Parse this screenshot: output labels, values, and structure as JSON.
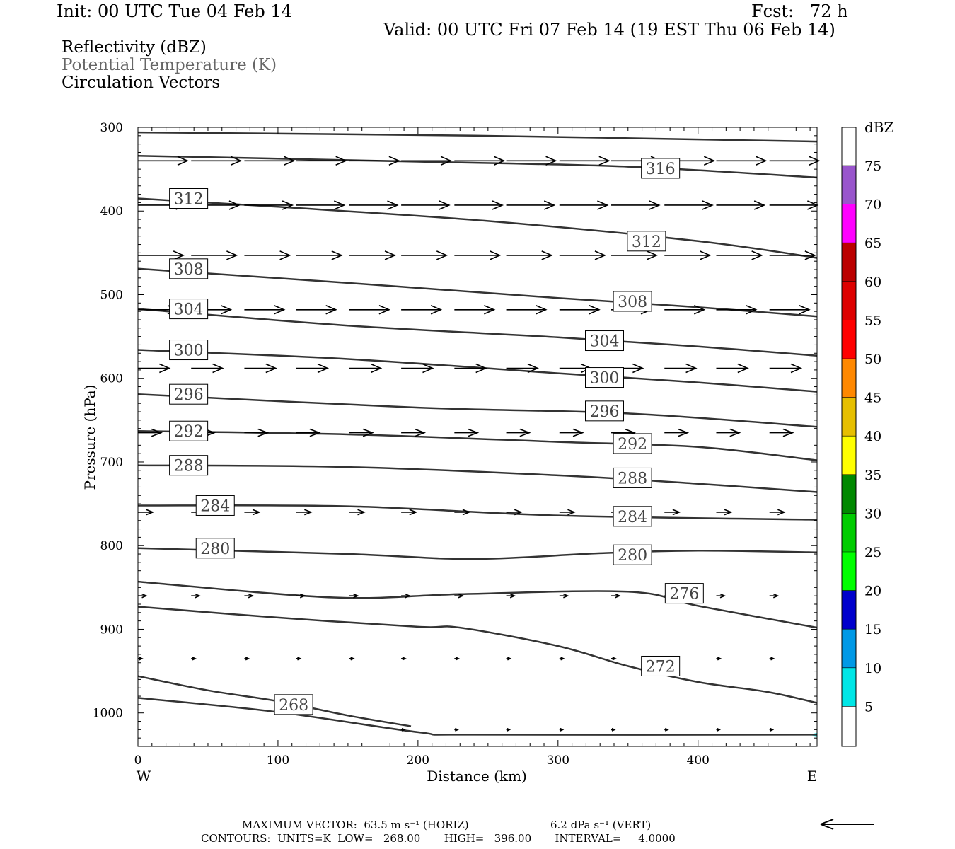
{
  "header": {
    "init": "Init: 00 UTC Tue 04 Feb 14",
    "fcst": "Fcst:   72 h",
    "valid": "Valid: 00 UTC Fri 07 Feb 14 (19 EST Thu 06 Feb 14)",
    "legend": [
      "Reflectivity (dBZ)",
      "Potential Temperature (K)",
      "Circulation Vectors"
    ]
  },
  "footer": {
    "max_vector_horiz": "MAXIMUM VECTOR:  63.5 m s⁻¹ (HORIZ)",
    "max_vector_vert": "6.2 dPa s⁻¹ (VERT)",
    "contours": "CONTOURS:  UNITS=K  LOW=   268.00       HIGH=   396.00       INTERVAL=     4.0000"
  },
  "chart_data": {
    "type": "cross-section contour",
    "xlabel": "Distance (km)",
    "ylabel": "Pressure (hPa)",
    "x_end_labels": [
      "W",
      "E"
    ],
    "xlim": [
      0,
      485
    ],
    "ylim": [
      1040,
      300
    ],
    "x_ticks": [
      0,
      100,
      200,
      300,
      400
    ],
    "y_ticks": [
      300,
      400,
      500,
      600,
      700,
      800,
      900,
      1000
    ],
    "colorbar": {
      "unit": "dBZ",
      "levels": [
        5,
        10,
        15,
        20,
        25,
        30,
        35,
        40,
        45,
        50,
        55,
        60,
        65,
        70,
        75
      ],
      "colors": [
        "#00e6e6",
        "#0099e6",
        "#0000cc",
        "#00ff00",
        "#00cc00",
        "#008800",
        "#ffff00",
        "#e6bf00",
        "#ff8800",
        "#ff0000",
        "#dd0000",
        "#bb0000",
        "#ff00ff",
        "#9955cc"
      ]
    },
    "contour_color": "#333333",
    "theta_contours": [
      {
        "label": "",
        "points": [
          [
            0,
            306
          ],
          [
            240,
            310
          ],
          [
            485,
            317
          ]
        ]
      },
      {
        "label": "316",
        "label_at": [
          355,
          349
        ],
        "points": [
          [
            0,
            334
          ],
          [
            200,
            341
          ],
          [
            350,
            347
          ],
          [
            485,
            360
          ]
        ]
      },
      {
        "label": "312",
        "label_at": [
          18,
          385
        ],
        "points": [
          [
            0,
            385
          ],
          [
            100,
            395
          ],
          [
            250,
            412
          ],
          [
            400,
            436
          ],
          [
            485,
            456
          ]
        ]
      },
      {
        "label": "312",
        "label_at": [
          345,
          436
        ],
        "points": []
      },
      {
        "label": "308",
        "label_at": [
          18,
          469
        ],
        "points": [
          [
            0,
            469
          ],
          [
            150,
            486
          ],
          [
            300,
            504
          ],
          [
            400,
            515
          ],
          [
            485,
            526
          ]
        ]
      },
      {
        "label": "308",
        "label_at": [
          335,
          508
        ],
        "points": []
      },
      {
        "label": "304",
        "label_at": [
          18,
          517
        ],
        "points": [
          [
            0,
            517
          ],
          [
            150,
            537
          ],
          [
            300,
            551
          ],
          [
            400,
            562
          ],
          [
            485,
            573
          ]
        ]
      },
      {
        "label": "304",
        "label_at": [
          315,
          555
        ],
        "points": []
      },
      {
        "label": "300",
        "label_at": [
          18,
          566
        ],
        "points": [
          [
            0,
            566
          ],
          [
            150,
            577
          ],
          [
            300,
            594
          ],
          [
            400,
            605
          ],
          [
            485,
            616
          ]
        ]
      },
      {
        "label": "300",
        "label_at": [
          315,
          599
        ],
        "points": []
      },
      {
        "label": "296",
        "label_at": [
          18,
          619
        ],
        "points": [
          [
            0,
            619
          ],
          [
            200,
            635
          ],
          [
            350,
            642
          ],
          [
            485,
            658
          ]
        ]
      },
      {
        "label": "296",
        "label_at": [
          315,
          639
        ],
        "points": []
      },
      {
        "label": "292",
        "label_at": [
          18,
          663
        ],
        "points": [
          [
            0,
            663
          ],
          [
            150,
            667
          ],
          [
            300,
            676
          ],
          [
            400,
            682
          ],
          [
            485,
            698
          ]
        ]
      },
      {
        "label": "292",
        "label_at": [
          335,
          678
        ],
        "points": []
      },
      {
        "label": "288",
        "label_at": [
          18,
          704
        ],
        "points": [
          [
            0,
            704
          ],
          [
            150,
            706
          ],
          [
            300,
            716
          ],
          [
            400,
            726
          ],
          [
            485,
            736
          ]
        ]
      },
      {
        "label": "288",
        "label_at": [
          335,
          719
        ],
        "points": []
      },
      {
        "label": "284",
        "label_at": [
          37,
          752
        ],
        "points": [
          [
            0,
            752
          ],
          [
            150,
            753
          ],
          [
            300,
            764
          ],
          [
            485,
            769
          ]
        ]
      },
      {
        "label": "284",
        "label_at": [
          335,
          765
        ],
        "points": []
      },
      {
        "label": "280",
        "label_at": [
          37,
          803
        ],
        "points": [
          [
            0,
            803
          ],
          [
            150,
            810
          ],
          [
            240,
            816
          ],
          [
            330,
            809
          ],
          [
            400,
            806
          ],
          [
            485,
            808
          ]
        ]
      },
      {
        "label": "280",
        "label_at": [
          335,
          811
        ],
        "points": []
      },
      {
        "label": "276",
        "label_at": [
          372,
          857
        ],
        "points": [
          [
            0,
            843
          ],
          [
            140,
            862
          ],
          [
            230,
            858
          ],
          [
            350,
            855
          ],
          [
            400,
            872
          ],
          [
            485,
            898
          ]
        ]
      },
      {
        "label": "272",
        "label_at": [
          355,
          944
        ],
        "points": [
          [
            0,
            873
          ],
          [
            100,
            886
          ],
          [
            200,
            897
          ],
          [
            230,
            898
          ],
          [
            300,
            920
          ],
          [
            350,
            944
          ],
          [
            400,
            963
          ],
          [
            450,
            975
          ],
          [
            485,
            988
          ]
        ]
      },
      {
        "label": "268",
        "label_at": [
          93,
          990
        ],
        "points": [
          [
            0,
            956
          ],
          [
            50,
            973
          ],
          [
            100,
            986
          ],
          [
            150,
            1003
          ],
          [
            195,
            1016
          ]
        ]
      },
      {
        "label": "",
        "points": [
          [
            0,
            982
          ],
          [
            100,
            999
          ],
          [
            200,
            1023
          ],
          [
            240,
            1026
          ],
          [
            485,
            1026
          ]
        ]
      }
    ],
    "vector_rows": [
      {
        "p": 340,
        "x": [
          0,
          38,
          76,
          113,
          151,
          188,
          226,
          263,
          301,
          338,
          376,
          413,
          451
        ],
        "u": 60,
        "w": 0
      },
      {
        "p": 393,
        "x": [
          0,
          38,
          76,
          113,
          151,
          188,
          226,
          263,
          301,
          338,
          376,
          413,
          451
        ],
        "u": 58,
        "w": 0
      },
      {
        "p": 453,
        "x": [
          0,
          38,
          76,
          113,
          151,
          188,
          226,
          263,
          301,
          338,
          376,
          413,
          451
        ],
        "u": 55,
        "w": 0
      },
      {
        "p": 518,
        "x": [
          0,
          38,
          76,
          113,
          151,
          188,
          226,
          263,
          301,
          338,
          376,
          413,
          451
        ],
        "u": 48,
        "w": 0
      },
      {
        "p": 588,
        "x": [
          0,
          38,
          76,
          113,
          151,
          188,
          226,
          263,
          301,
          338,
          376,
          413,
          451
        ],
        "u": 38,
        "w": 0
      },
      {
        "p": 665,
        "x": [
          0,
          38,
          76,
          113,
          151,
          188,
          226,
          263,
          301,
          338,
          376,
          413,
          451
        ],
        "u": 28,
        "w": 0
      },
      {
        "p": 760,
        "x": [
          0,
          38,
          76,
          113,
          151,
          188,
          226,
          263,
          301,
          338,
          376,
          413,
          451
        ],
        "u": 18,
        "w": 0
      },
      {
        "p": 860,
        "x": [
          0,
          38,
          76,
          113,
          151,
          188,
          226,
          263,
          301,
          338,
          376,
          413,
          451
        ],
        "u": 10,
        "w": 0
      },
      {
        "p": 935,
        "x": [
          0,
          38,
          76,
          113,
          151,
          188,
          226,
          263,
          301,
          338,
          376,
          413,
          451
        ],
        "u": 5,
        "w": 0
      },
      {
        "p": 1020,
        "x": [
          188,
          226,
          263,
          301,
          338,
          376,
          413,
          451
        ],
        "u": 4,
        "w": 0
      }
    ],
    "reflectivity_patches": [
      {
        "dbz": 5,
        "points": [
          [
            478,
            1026
          ],
          [
            485,
            1024
          ],
          [
            485,
            1028
          ]
        ]
      }
    ]
  }
}
